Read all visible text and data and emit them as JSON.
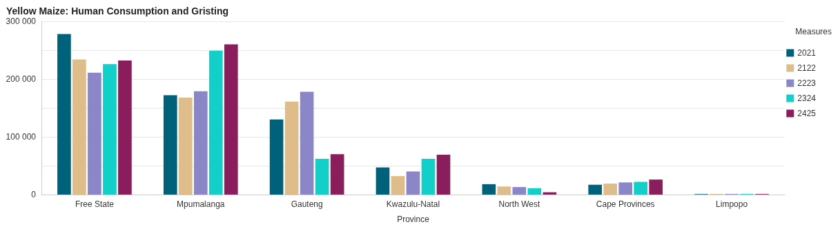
{
  "chart_data": {
    "type": "bar",
    "title": "Yellow Maize: Human Consumption and Gristing",
    "xlabel": "Province",
    "legend_title": "Measures",
    "legend": "top right",
    "grid": "y",
    "categories": [
      "Free State",
      "Mpumalanga",
      "Gauteng",
      "Kwazulu-Natal",
      "North West",
      "Cape Provinces",
      "Limpopo"
    ],
    "series": [
      {
        "name": "2021",
        "color": "#00627a",
        "values": [
          278000,
          172000,
          130000,
          47000,
          18000,
          17000,
          1000
        ]
      },
      {
        "name": "2122",
        "color": "#dfbd8a",
        "values": [
          234000,
          168000,
          161000,
          32000,
          14000,
          19000,
          1000
        ]
      },
      {
        "name": "2223",
        "color": "#8b86c7",
        "values": [
          211000,
          179000,
          178000,
          40000,
          13000,
          21000,
          1000
        ]
      },
      {
        "name": "2324",
        "color": "#13cfc9",
        "values": [
          226000,
          249000,
          62000,
          62000,
          11000,
          22000,
          1000
        ]
      },
      {
        "name": "2425",
        "color": "#8a1d5c",
        "values": [
          232000,
          260000,
          70000,
          69000,
          4000,
          26000,
          1000
        ]
      }
    ],
    "ylim": [
      0,
      300000
    ],
    "yticks": [
      {
        "value": 0,
        "label": "0"
      },
      {
        "value": 50000,
        "label": null
      },
      {
        "value": 100000,
        "label": "100 000"
      },
      {
        "value": 150000,
        "label": null
      },
      {
        "value": 200000,
        "label": "200 000"
      },
      {
        "value": 250000,
        "label": null
      },
      {
        "value": 300000,
        "label": "300 000"
      }
    ]
  }
}
